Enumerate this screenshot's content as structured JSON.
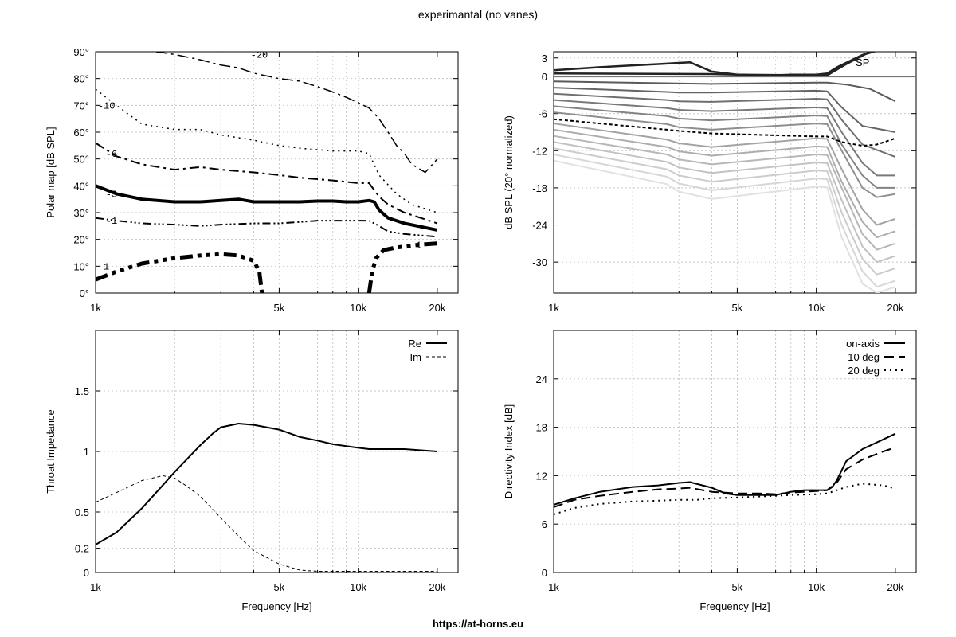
{
  "title": "experimantal (no vanes)",
  "footer": "https://at-horns.eu",
  "x_ticks": [
    "1k",
    "5k",
    "10k",
    "20k"
  ],
  "chart_data": [
    {
      "type": "line",
      "subtype": "contour",
      "id": "polar",
      "xlabel": "",
      "ylabel": "Polar map [dB SPL]",
      "xscale": "log",
      "xlim": [
        1000,
        24000
      ],
      "ylim": [
        0,
        90
      ],
      "yticks": [
        0,
        10,
        20,
        30,
        40,
        50,
        60,
        70,
        80,
        90
      ],
      "ytick_labels": [
        "0°",
        "10°",
        "20°",
        "30°",
        "40°",
        "50°",
        "60°",
        "70°",
        "80°",
        "90°"
      ],
      "grid": true,
      "series": [
        {
          "name": "-20",
          "x": [
            1700,
            2000,
            2500,
            3000,
            3500,
            4000,
            5000,
            6000,
            7000,
            8000,
            9000,
            10000,
            11000,
            11500,
            12000,
            13000,
            14000,
            15000,
            16000,
            18000,
            20000
          ],
          "y": [
            90,
            89,
            87,
            85,
            84,
            82,
            80,
            79,
            77,
            75,
            73,
            71,
            69,
            67,
            65,
            60,
            55,
            52,
            48,
            45,
            50
          ]
        },
        {
          "name": "-10",
          "x": [
            1000,
            1200,
            1500,
            2000,
            2500,
            3000,
            4000,
            5000,
            6000,
            8000,
            10000,
            11000,
            12000,
            14000,
            16000,
            20000
          ],
          "y": [
            76,
            70,
            63,
            61,
            61,
            59,
            57,
            55,
            54,
            53,
            53,
            52,
            44,
            37,
            33,
            30
          ]
        },
        {
          "name": "-6",
          "x": [
            1000,
            1200,
            1500,
            2000,
            2500,
            3000,
            4000,
            5000,
            6000,
            8000,
            10000,
            11000,
            12000,
            13000,
            15000,
            20000
          ],
          "y": [
            56,
            51,
            48,
            46,
            47,
            46,
            45,
            44,
            43,
            42,
            41,
            41,
            36,
            33,
            30,
            26
          ]
        },
        {
          "name": "-3",
          "x": [
            1000,
            1200,
            1500,
            2000,
            2500,
            3000,
            3500,
            4000,
            5000,
            6000,
            7000,
            8000,
            9000,
            10000,
            11000,
            11500,
            12000,
            13000,
            15000,
            20000
          ],
          "y": [
            40,
            37,
            35,
            34,
            34,
            34.5,
            35,
            34,
            34,
            34,
            34.3,
            34.3,
            34,
            34,
            34.5,
            34,
            31,
            28,
            26,
            23.5
          ]
        },
        {
          "name": "-1",
          "x": [
            1000,
            1200,
            1500,
            2000,
            2500,
            3000,
            4000,
            5000,
            6000,
            7000,
            8000,
            10000,
            11000,
            12000,
            13000,
            15000,
            20000
          ],
          "y": [
            28,
            27,
            26,
            25.5,
            25,
            25.5,
            26,
            26,
            26.5,
            27,
            27,
            27,
            27,
            25,
            23,
            22,
            21
          ]
        },
        {
          "name": "1",
          "x": [
            1000,
            1200,
            1500,
            2000,
            2500,
            3000,
            3500,
            4000,
            4200,
            4300
          ],
          "y": [
            5,
            8,
            11,
            13,
            14,
            14.5,
            14,
            12,
            8,
            0
          ]
        },
        {
          "name": "1",
          "x": [
            11000,
            11300,
            11700,
            12500,
            14000,
            17000,
            20000
          ],
          "y": [
            0,
            8,
            13,
            16,
            17,
            18,
            18.5
          ]
        }
      ],
      "contour_labels": [
        {
          "text": "-20",
          "x": 4200,
          "y": 89
        },
        {
          "text": "-10",
          "x": 1100,
          "y": 70
        },
        {
          "text": "-6",
          "x": 1150,
          "y": 52
        },
        {
          "text": "-3",
          "x": 1150,
          "y": 37
        },
        {
          "text": "-1",
          "x": 1150,
          "y": 27
        },
        {
          "text": "1",
          "x": 1100,
          "y": 10
        },
        {
          "text": "1",
          "x": 17000,
          "y": 18
        }
      ]
    },
    {
      "type": "line",
      "id": "normalized",
      "xlabel": "",
      "ylabel": "dB SPL (20° normalized)",
      "xscale": "log",
      "xlim": [
        1000,
        24000
      ],
      "ylim": [
        -35,
        4
      ],
      "yticks": [
        3,
        0,
        -6,
        -12,
        -18,
        -24,
        -30
      ],
      "ytick_labels": [
        "3",
        "0",
        "-6",
        "-12",
        "-18",
        "-24",
        "-30"
      ],
      "grid": true,
      "annotation": "SP",
      "series": [
        {
          "name": "",
          "x": [
            1000,
            1500,
            2000,
            2500,
            3000,
            3300,
            4000,
            5000,
            6000,
            7000,
            8000,
            10000,
            11000,
            12000,
            15000,
            20000
          ],
          "y": [
            1,
            1.5,
            1.8,
            2,
            2.2,
            2.3,
            0.8,
            0.3,
            0.2,
            0.2,
            0.3,
            0.3,
            0.5,
            1.5,
            3.5,
            5
          ]
        },
        {
          "name": "",
          "x": [
            1000,
            4000,
            5000,
            10000,
            11000,
            13000,
            16000,
            20000
          ],
          "y": [
            0.5,
            0.4,
            0.3,
            0.2,
            0.2,
            2,
            4,
            5
          ]
        },
        {
          "name": "",
          "x": [
            1000,
            24000
          ],
          "y": [
            0,
            0
          ]
        },
        {
          "name": "",
          "x": [
            1000,
            4000,
            10000,
            11000,
            13000,
            16000,
            20000
          ],
          "y": [
            -0.8,
            -1.2,
            -1.0,
            -1.0,
            -1.3,
            -2,
            -4
          ]
        },
        {
          "name": "",
          "x": [
            1000,
            2700,
            3000,
            4000,
            10000,
            11000,
            12500,
            15000,
            20000
          ],
          "y": [
            -1.8,
            -2.5,
            -2.6,
            -2.6,
            -2.3,
            -2.4,
            -5,
            -8,
            -9
          ]
        },
        {
          "name": "",
          "x": [
            1000,
            2700,
            3000,
            4000,
            10000,
            11000,
            12500,
            15000,
            20000
          ],
          "y": [
            -2.8,
            -3.8,
            -4.0,
            -4.1,
            -3.6,
            -3.7,
            -7,
            -11,
            -13
          ]
        },
        {
          "name": "",
          "x": [
            1000,
            2700,
            3000,
            4000,
            10000,
            11000,
            12500,
            15000,
            17000,
            20000
          ],
          "y": [
            -3.8,
            -5.1,
            -5.4,
            -5.6,
            -5.0,
            -5.1,
            -9,
            -14,
            -16,
            -16
          ]
        },
        {
          "name": "",
          "x": [
            1000,
            2700,
            3000,
            4000,
            10000,
            11000,
            12500,
            15000,
            17000,
            20000
          ],
          "y": [
            -4.8,
            -6.4,
            -6.8,
            -7.1,
            -6.3,
            -6.4,
            -11,
            -16,
            -18,
            -18
          ]
        },
        {
          "name": "",
          "x": [
            1000,
            2700,
            3000,
            4000,
            10000,
            11000,
            12500,
            15000,
            17000,
            20000
          ],
          "y": [
            -5.8,
            -7.7,
            -8.2,
            -8.6,
            -7.6,
            -7.7,
            -12,
            -18,
            -19.5,
            -19
          ]
        },
        {
          "name": "",
          "x": [
            1000,
            2700,
            3000,
            4000,
            10000,
            11000,
            12500,
            15000,
            17000,
            20000
          ],
          "y": [
            -6.9,
            -8.6,
            -8.8,
            -9.2,
            -9.7,
            -9.7,
            -10.6,
            -11.2,
            -11,
            -10
          ]
        },
        {
          "name": "",
          "x": [
            1000,
            2700,
            3000,
            4000,
            10000,
            11000,
            12500,
            15000,
            17000,
            20000
          ],
          "y": [
            -7.6,
            -10.2,
            -10.8,
            -11.4,
            -10.0,
            -10.1,
            -15,
            -21.5,
            -24,
            -23
          ]
        },
        {
          "name": "",
          "x": [
            1000,
            2700,
            3000,
            4000,
            10000,
            11000,
            12500,
            15000,
            17000,
            20000
          ],
          "y": [
            -8.6,
            -11.4,
            -12.1,
            -12.8,
            -11.3,
            -11.4,
            -17,
            -23.5,
            -26,
            -25
          ]
        },
        {
          "name": "",
          "x": [
            1000,
            2700,
            3000,
            4000,
            10000,
            11000,
            12500,
            15000,
            17000,
            20000
          ],
          "y": [
            -9.6,
            -12.6,
            -13.4,
            -14.2,
            -12.6,
            -12.7,
            -18,
            -25.5,
            -28,
            -27
          ]
        },
        {
          "name": "",
          "x": [
            1000,
            2700,
            3000,
            4000,
            10000,
            11000,
            12500,
            15000,
            17000,
            20000
          ],
          "y": [
            -10.6,
            -13.8,
            -14.7,
            -15.6,
            -13.9,
            -14.0,
            -20,
            -27.5,
            -30,
            -29
          ]
        },
        {
          "name": "",
          "x": [
            1000,
            2700,
            3000,
            4000,
            10000,
            11000,
            12500,
            15000,
            17000,
            20000
          ],
          "y": [
            -11.6,
            -15.0,
            -16.0,
            -17.0,
            -15.2,
            -15.3,
            -22,
            -29.5,
            -32,
            -31
          ]
        },
        {
          "name": "",
          "x": [
            1000,
            2700,
            3000,
            4000,
            10000,
            11000,
            12500,
            15000,
            17000,
            20000
          ],
          "y": [
            -12.6,
            -16.2,
            -17.3,
            -18.4,
            -16.5,
            -16.6,
            -24,
            -31.5,
            -34,
            -33
          ]
        },
        {
          "name": "",
          "x": [
            1000,
            2700,
            3000,
            4000,
            10000,
            11000,
            12500,
            15000,
            17000,
            20000
          ],
          "y": [
            -13.6,
            -17.4,
            -18.6,
            -19.8,
            -17.8,
            -17.9,
            -26,
            -33.5,
            -35,
            -34
          ]
        }
      ]
    },
    {
      "type": "line",
      "id": "impedance",
      "xlabel": "Frequency [Hz]",
      "ylabel": "Throat Impedance",
      "xscale": "log",
      "xlim": [
        1000,
        24000
      ],
      "ylim": [
        0,
        2
      ],
      "yticks": [
        0,
        0.2,
        0.5,
        1,
        1.5
      ],
      "ytick_labels": [
        "0",
        "0.2",
        "0.5",
        "1",
        "1.5"
      ],
      "grid": true,
      "legend": "top-right",
      "series": [
        {
          "name": "Re",
          "x": [
            1000,
            1200,
            1500,
            1800,
            2000,
            2500,
            2800,
            3000,
            3500,
            4000,
            5000,
            6000,
            7000,
            8000,
            10000,
            11000,
            12000,
            13000,
            15000,
            20000
          ],
          "y": [
            0.23,
            0.33,
            0.53,
            0.72,
            0.83,
            1.05,
            1.15,
            1.2,
            1.23,
            1.22,
            1.18,
            1.12,
            1.09,
            1.06,
            1.03,
            1.02,
            1.02,
            1.02,
            1.02,
            1.0
          ]
        },
        {
          "name": "Im",
          "x": [
            1000,
            1200,
            1500,
            1800,
            2000,
            2200,
            2500,
            3000,
            3500,
            4000,
            5000,
            6000,
            7000,
            8000,
            10000,
            12000,
            15000,
            20000
          ],
          "y": [
            0.58,
            0.66,
            0.76,
            0.8,
            0.78,
            0.72,
            0.63,
            0.45,
            0.3,
            0.18,
            0.07,
            0.02,
            0.01,
            0.01,
            0.01,
            0.01,
            0.01,
            0.01
          ]
        }
      ]
    },
    {
      "type": "line",
      "id": "directivity",
      "xlabel": "Frequency [Hz]",
      "ylabel": "Directivity Index [dB]",
      "xscale": "log",
      "xlim": [
        1000,
        24000
      ],
      "ylim": [
        0,
        30
      ],
      "yticks": [
        0,
        6,
        12,
        18,
        24
      ],
      "ytick_labels": [
        "0",
        "6",
        "12",
        "18",
        "24"
      ],
      "grid": true,
      "legend": "top-right",
      "series": [
        {
          "name": "on-axis",
          "x": [
            1000,
            1200,
            1500,
            2000,
            2500,
            3000,
            3300,
            4000,
            4500,
            5000,
            6000,
            7000,
            8000,
            9000,
            10000,
            11000,
            11500,
            12000,
            13000,
            15000,
            18000,
            20000
          ],
          "y": [
            8.4,
            9.2,
            10,
            10.6,
            10.8,
            11.1,
            11.2,
            10.5,
            9.8,
            9.6,
            9.6,
            9.6,
            10.0,
            10.2,
            10.2,
            10.2,
            10.6,
            11.5,
            13.8,
            15.3,
            16.5,
            17.2
          ]
        },
        {
          "name": "10 deg",
          "x": [
            1000,
            1200,
            1500,
            2000,
            2500,
            3000,
            3300,
            4000,
            5000,
            6000,
            7000,
            8000,
            10000,
            11000,
            12000,
            13000,
            15000,
            18000,
            20000
          ],
          "y": [
            8.1,
            9.0,
            9.5,
            10.0,
            10.3,
            10.4,
            10.5,
            10.0,
            9.8,
            9.8,
            9.7,
            9.9,
            10.1,
            10.2,
            11.2,
            12.8,
            14.0,
            15.0,
            15.5
          ]
        },
        {
          "name": "20 deg",
          "x": [
            1000,
            1200,
            1500,
            2000,
            2500,
            3000,
            3500,
            4000,
            5000,
            6000,
            7000,
            8000,
            10000,
            11000,
            12000,
            13000,
            15000,
            18000,
            20000
          ],
          "y": [
            7.2,
            8.0,
            8.5,
            8.8,
            8.9,
            9.0,
            9.0,
            9.2,
            9.3,
            9.4,
            9.5,
            9.6,
            9.7,
            9.8,
            10.2,
            10.6,
            11.0,
            10.8,
            10.4
          ]
        }
      ]
    }
  ]
}
